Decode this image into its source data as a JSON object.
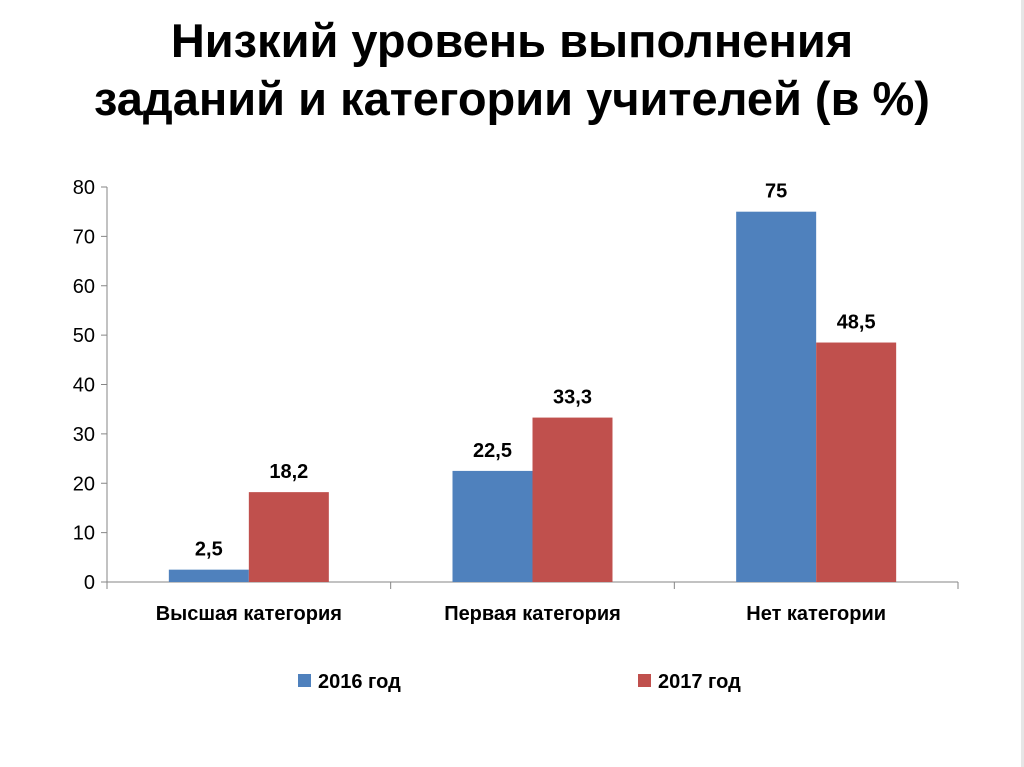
{
  "slide": {
    "title_line1": "Низкий уровень выполнения",
    "title_line2": "заданий и категории учителей (в %)"
  },
  "chart_data": {
    "type": "bar",
    "title": "",
    "xlabel": "",
    "ylabel": "",
    "ylim": [
      0,
      80
    ],
    "yticks": [
      0,
      10,
      20,
      30,
      40,
      50,
      60,
      70,
      80
    ],
    "grid": false,
    "legend_position": "bottom",
    "categories": [
      "Высшая категория",
      "Первая категория",
      "Нет категории"
    ],
    "series": [
      {
        "name": "2016 год",
        "color": "#4f81bd",
        "values": [
          2.5,
          22.5,
          75
        ],
        "labels": [
          "2,5",
          "22,5",
          "75"
        ]
      },
      {
        "name": "2017 год",
        "color": "#c0504d",
        "values": [
          18.2,
          33.3,
          48.5
        ],
        "labels": [
          "18,2",
          "33,3",
          "48,5"
        ]
      }
    ]
  }
}
